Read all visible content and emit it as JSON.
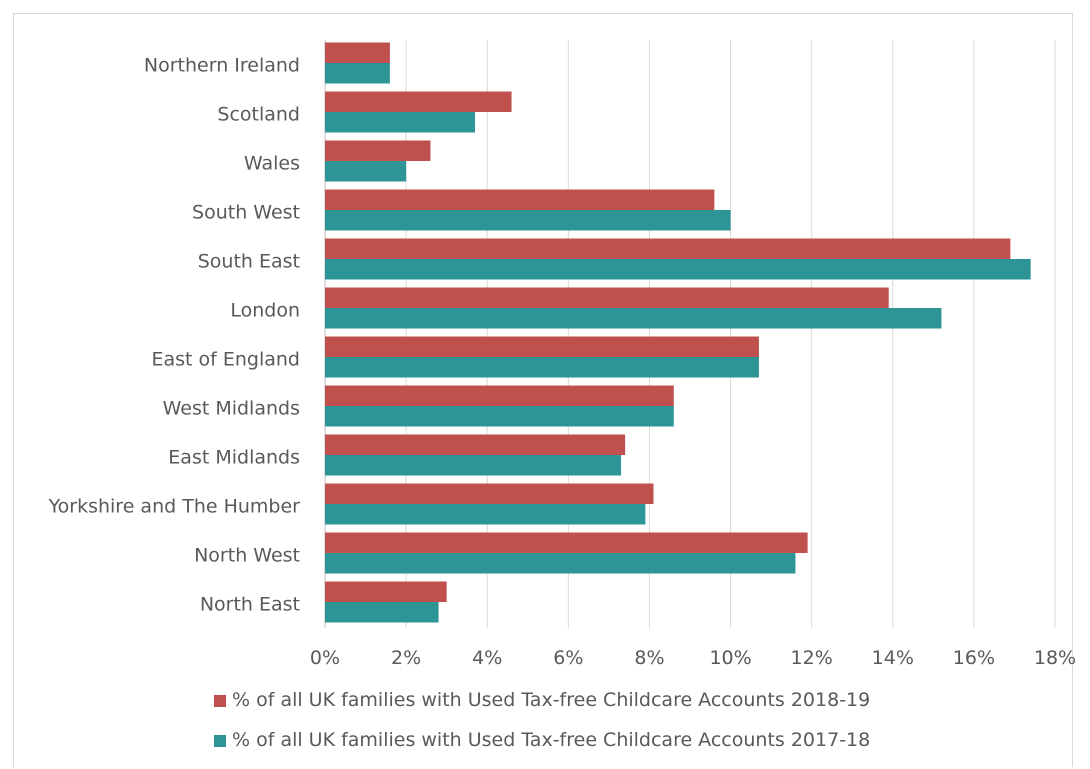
{
  "chart_data": {
    "type": "bar",
    "orientation": "horizontal",
    "categories": [
      "Northern Ireland",
      "Scotland",
      "Wales",
      "South West",
      "South East",
      "London",
      "East of England",
      "West Midlands",
      "East Midlands",
      "Yorkshire and The Humber",
      "North West",
      "North East"
    ],
    "series": [
      {
        "name": "% of all UK families with Used Tax-free Childcare Accounts 2018-19",
        "color": "#c0504d",
        "values": [
          1.6,
          4.6,
          2.6,
          9.6,
          16.9,
          13.9,
          10.7,
          8.6,
          7.4,
          8.1,
          11.9,
          3.0
        ]
      },
      {
        "name": "% of all UK families with Used Tax-free Childcare Accounts 2017-18",
        "color": "#2e9596",
        "values": [
          1.6,
          3.7,
          2.0,
          10.0,
          17.4,
          15.2,
          10.7,
          8.6,
          7.3,
          7.9,
          11.6,
          2.8
        ]
      }
    ],
    "x_ticks": [
      "0%",
      "2%",
      "4%",
      "6%",
      "8%",
      "10%",
      "12%",
      "14%",
      "16%",
      "18%"
    ],
    "xlim": [
      0,
      18
    ],
    "xlabel": "",
    "ylabel": "",
    "title": "",
    "grid": "vertical",
    "legend_position": "bottom"
  }
}
